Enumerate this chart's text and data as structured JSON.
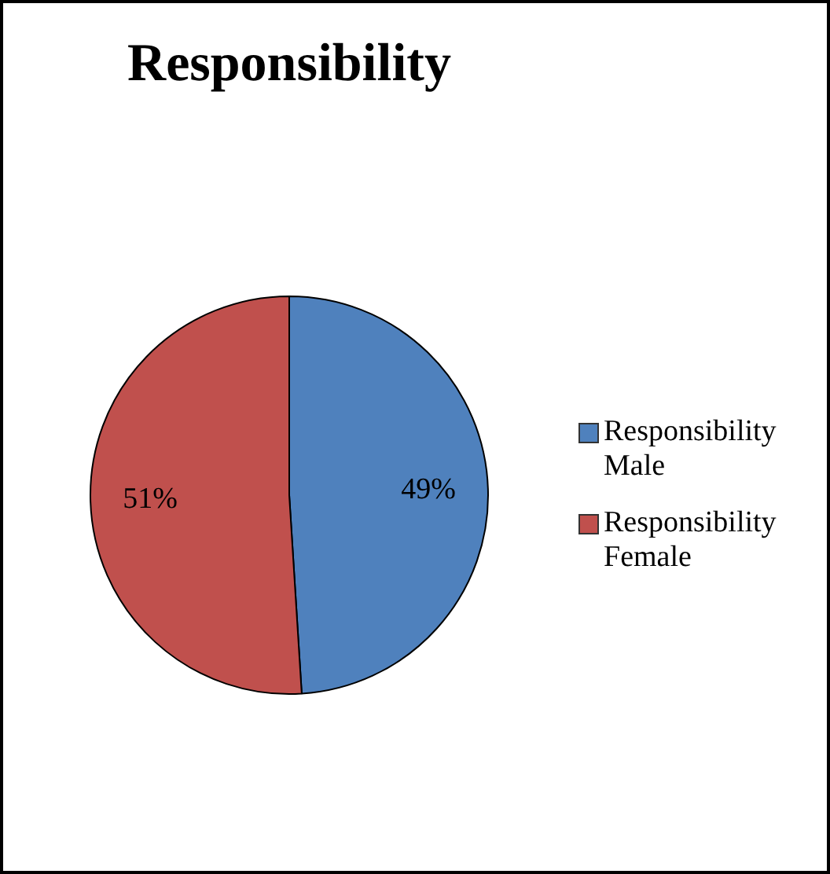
{
  "chart_data": {
    "type": "pie",
    "title": "Responsibility",
    "categories": [
      "Responsibility Male",
      "Responsibility Female"
    ],
    "values": [
      49,
      51
    ],
    "value_labels": [
      "49%",
      "51%"
    ],
    "colors": [
      "#4f81bd",
      "#c0504d"
    ],
    "legend": "right"
  }
}
